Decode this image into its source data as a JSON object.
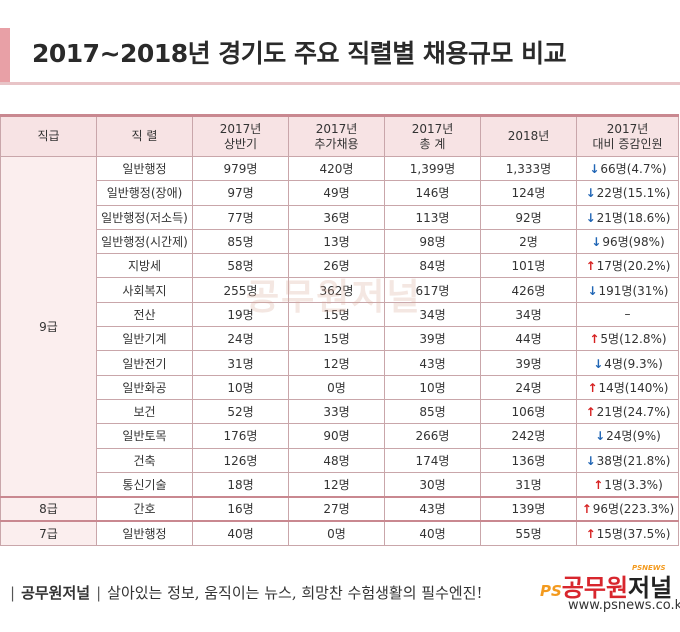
{
  "title": "2017~2018년 경기도 주요 직렬별 채용규모 비교",
  "table": {
    "headers": [
      [
        "직급"
      ],
      [
        "직 렬"
      ],
      [
        "2017년",
        "상반기"
      ],
      [
        "2017년",
        "추가채용"
      ],
      [
        "2017년",
        "총 계"
      ],
      [
        "2018년"
      ],
      [
        "2017년",
        "대비 증감인원"
      ]
    ],
    "groups": [
      {
        "grade": "9급",
        "rows": [
          {
            "series": "일반행정",
            "h1": "979명",
            "extra": "420명",
            "total": "1,399명",
            "y2018": "1,333명",
            "dir": "down",
            "change": "66명(4.7%)"
          },
          {
            "series": "일반행정(장애)",
            "h1": "97명",
            "extra": "49명",
            "total": "146명",
            "y2018": "124명",
            "dir": "down",
            "change": "22명(15.1%)"
          },
          {
            "series": "일반행정(저소득)",
            "h1": "77명",
            "extra": "36명",
            "total": "113명",
            "y2018": "92명",
            "dir": "down",
            "change": "21명(18.6%)"
          },
          {
            "series": "일반행정(시간제)",
            "h1": "85명",
            "extra": "13명",
            "total": "98명",
            "y2018": "2명",
            "dir": "down",
            "change": "96명(98%)"
          },
          {
            "series": "지방세",
            "h1": "58명",
            "extra": "26명",
            "total": "84명",
            "y2018": "101명",
            "dir": "up",
            "change": "17명(20.2%)"
          },
          {
            "series": "사회복지",
            "h1": "255명",
            "extra": "362명",
            "total": "617명",
            "y2018": "426명",
            "dir": "down",
            "change": "191명(31%)"
          },
          {
            "series": "전산",
            "h1": "19명",
            "extra": "15명",
            "total": "34명",
            "y2018": "34명",
            "dir": "none",
            "change": "–"
          },
          {
            "series": "일반기계",
            "h1": "24명",
            "extra": "15명",
            "total": "39명",
            "y2018": "44명",
            "dir": "up",
            "change": "5명(12.8%)"
          },
          {
            "series": "일반전기",
            "h1": "31명",
            "extra": "12명",
            "total": "43명",
            "y2018": "39명",
            "dir": "down",
            "change": "4명(9.3%)"
          },
          {
            "series": "일반화공",
            "h1": "10명",
            "extra": "0명",
            "total": "10명",
            "y2018": "24명",
            "dir": "up",
            "change": "14명(140%)"
          },
          {
            "series": "보건",
            "h1": "52명",
            "extra": "33명",
            "total": "85명",
            "y2018": "106명",
            "dir": "up",
            "change": "21명(24.7%)"
          },
          {
            "series": "일반토목",
            "h1": "176명",
            "extra": "90명",
            "total": "266명",
            "y2018": "242명",
            "dir": "down",
            "change": "24명(9%)"
          },
          {
            "series": "건축",
            "h1": "126명",
            "extra": "48명",
            "total": "174명",
            "y2018": "136명",
            "dir": "down",
            "change": "38명(21.8%)"
          },
          {
            "series": "통신기술",
            "h1": "18명",
            "extra": "12명",
            "total": "30명",
            "y2018": "31명",
            "dir": "up",
            "change": "1명(3.3%)"
          }
        ]
      },
      {
        "grade": "8급",
        "rows": [
          {
            "series": "간호",
            "h1": "16명",
            "extra": "27명",
            "total": "43명",
            "y2018": "139명",
            "dir": "up",
            "change": "96명(223.3%)"
          }
        ]
      },
      {
        "grade": "7급",
        "rows": [
          {
            "series": "일반행정",
            "h1": "40명",
            "extra": "0명",
            "total": "40명",
            "y2018": "55명",
            "dir": "up",
            "change": "15명(37.5%)"
          }
        ]
      }
    ]
  },
  "watermark": "공무원저널",
  "footer": {
    "brand": "공무원저널",
    "tagline": "살아있는 정보, 움직이는 뉴스, 희망찬 수험생활의 필수엔진!",
    "logo_ps": "PS",
    "logo_main": "공무원",
    "logo_sub": "저널",
    "logo_tag": "PSNEWS",
    "url": "www.psnews.co.kr"
  },
  "colors": {
    "accent": "#e8a0a6",
    "header_bg": "#f7e3e4",
    "up_arrow": "#d62020",
    "down_arrow": "#2166b5",
    "logo_orange": "#f39a1e",
    "logo_red": "#d8262d"
  }
}
